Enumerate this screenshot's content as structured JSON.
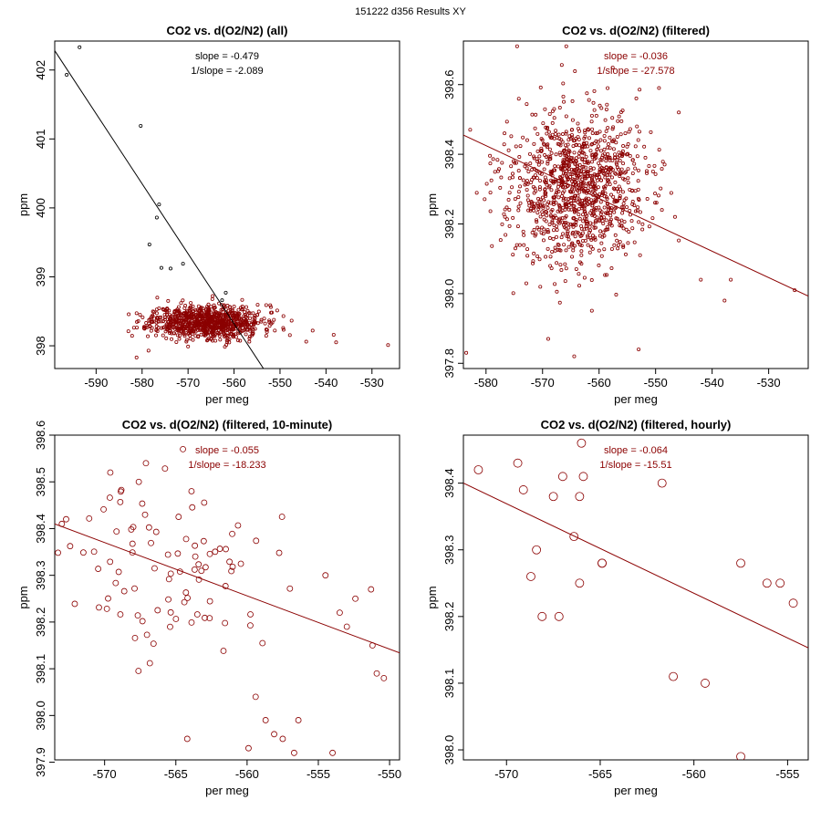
{
  "figure": {
    "suptitle": "151222   d356   Results XY",
    "colors": {
      "axes": "#000000",
      "data": "#8b0000",
      "black_series": "#000000"
    }
  },
  "chart_data": [
    {
      "id": "all",
      "type": "scatter",
      "title": "CO2 vs. d(O2/N2) (all)",
      "xlabel": "per meg",
      "ylabel": "ppm",
      "xlim": [
        -599,
        -524
      ],
      "ylim": [
        397.67,
        402.42
      ],
      "xticks": [
        -590,
        -580,
        -570,
        -560,
        -550,
        -540,
        -530
      ],
      "yticks": [
        398,
        399,
        400,
        401,
        402
      ],
      "color": "#8b0000",
      "fit_color": "#000000",
      "slope_text": "slope = -0.479",
      "inv_slope_text": "1/slope = -2.089",
      "fit_line": {
        "x": [
          -599,
          -553.6
        ],
        "y": [
          402.28,
          397.67
        ]
      },
      "cloud": {
        "n": 900,
        "x_center": -566,
        "x_sd": 6,
        "y_center": 398.35,
        "y_sd": 0.12,
        "seed": 11
      },
      "outliers": [
        [
          -593.6,
          402.33
        ],
        [
          -596.4,
          401.93
        ],
        [
          -580.3,
          401.19
        ],
        [
          -576.3,
          400.05
        ],
        [
          -576.8,
          399.86
        ],
        [
          -578.4,
          399.47
        ],
        [
          -575.8,
          399.13
        ],
        [
          -573.8,
          399.12
        ],
        [
          -571.1,
          399.19
        ],
        [
          -561.8,
          398.77
        ],
        [
          -562.6,
          398.66
        ],
        [
          -526.5,
          398.01
        ],
        [
          -537.8,
          398.05
        ],
        [
          -542.9,
          398.22
        ],
        [
          -544.3,
          398.06
        ],
        [
          -581.2,
          397.83
        ],
        [
          -578.6,
          397.93
        ],
        [
          -553.0,
          398.59
        ]
      ]
    },
    {
      "id": "filtered",
      "type": "scatter",
      "title": "CO2 vs. d(O2/N2) (filtered)",
      "xlabel": "per meg",
      "ylabel": "ppm",
      "xlim": [
        -584,
        -523
      ],
      "ylim": [
        397.785,
        398.725
      ],
      "xticks": [
        -580,
        -570,
        -560,
        -550,
        -540,
        -530
      ],
      "yticks": [
        397.8,
        398.0,
        398.2,
        398.4,
        398.6
      ],
      "color": "#8b0000",
      "fit_color": "#8b0000",
      "slope_text": "slope = -0.036",
      "inv_slope_text": "1/slope = -27.578",
      "fit_line": {
        "x": [
          -584,
          -523
        ],
        "y": [
          398.455,
          397.993
        ]
      },
      "cloud": {
        "n": 1100,
        "x_center": -564,
        "x_sd": 6,
        "y_center": 398.3,
        "y_sd": 0.11,
        "seed": 23
      },
      "outliers": [
        [
          -525.4,
          398.01
        ],
        [
          -536.7,
          398.04
        ],
        [
          -537.8,
          397.98
        ],
        [
          -542.0,
          398.04
        ],
        [
          -583.5,
          397.83
        ],
        [
          -569.0,
          397.87
        ],
        [
          -564.4,
          397.82
        ],
        [
          -553.0,
          397.84
        ],
        [
          -574.5,
          398.71
        ],
        [
          -565.8,
          398.71
        ],
        [
          -545.9,
          398.52
        ],
        [
          -549.4,
          398.59
        ],
        [
          -553.3,
          398.48
        ]
      ]
    },
    {
      "id": "ten_minute",
      "type": "scatter",
      "title": "CO2 vs. d(O2/N2) (filtered, 10-minute)",
      "xlabel": "per meg",
      "ylabel": "ppm",
      "xlim": [
        -573.5,
        -549.3
      ],
      "ylim": [
        397.905,
        398.6
      ],
      "xticks": [
        -570,
        -565,
        -560,
        -555,
        -550
      ],
      "yticks": [
        397.9,
        398.0,
        398.1,
        398.2,
        398.3,
        398.4,
        398.5,
        398.6
      ],
      "color": "#8b0000",
      "fit_color": "#8b0000",
      "slope_text": "slope = -0.055",
      "inv_slope_text": "1/slope = -18.233",
      "fit_line": {
        "x": [
          -573.5,
          -549.3
        ],
        "y": [
          398.41,
          398.134
        ]
      },
      "cloud": {
        "n": 90,
        "x_center": -565,
        "x_sd": 3.5,
        "y_center": 398.31,
        "y_sd": 0.09,
        "seed": 37
      },
      "outliers": [
        [
          -564.5,
          398.57
        ],
        [
          -567.1,
          398.54
        ],
        [
          -567.6,
          398.5
        ],
        [
          -569.6,
          398.52
        ],
        [
          -563.9,
          398.48
        ],
        [
          -572.7,
          398.42
        ],
        [
          -573.0,
          398.41
        ],
        [
          -564.2,
          397.95
        ],
        [
          -559.9,
          397.93
        ],
        [
          -556.7,
          397.92
        ],
        [
          -554.0,
          397.92
        ],
        [
          -557.5,
          397.95
        ],
        [
          -558.1,
          397.96
        ],
        [
          -558.7,
          397.99
        ],
        [
          -559.4,
          398.04
        ],
        [
          -556.4,
          397.99
        ],
        [
          -550.4,
          398.08
        ],
        [
          -550.9,
          398.09
        ],
        [
          -551.2,
          398.15
        ],
        [
          -551.3,
          398.27
        ],
        [
          -552.4,
          398.25
        ],
        [
          -553.0,
          398.19
        ],
        [
          -554.5,
          398.3
        ],
        [
          -553.5,
          398.22
        ]
      ]
    },
    {
      "id": "hourly",
      "type": "scatter",
      "title": "CO2 vs. d(O2/N2) (filtered, hourly)",
      "xlabel": "per meg",
      "ylabel": "ppm",
      "xlim": [
        -572.3,
        -553.9
      ],
      "ylim": [
        397.985,
        398.472
      ],
      "xticks": [
        -570,
        -565,
        -560,
        -555
      ],
      "yticks": [
        398.0,
        398.1,
        398.2,
        398.3,
        398.4
      ],
      "color": "#8b0000",
      "fit_color": "#8b0000",
      "slope_text": "slope = -0.064",
      "inv_slope_text": "1/slope = -15.51",
      "fit_line": {
        "x": [
          -572.3,
          -553.9
        ],
        "y": [
          398.4,
          398.153
        ]
      },
      "points": [
        [
          -571.5,
          398.42
        ],
        [
          -569.4,
          398.43
        ],
        [
          -569.1,
          398.39
        ],
        [
          -567.5,
          398.38
        ],
        [
          -567.0,
          398.41
        ],
        [
          -566.1,
          398.38
        ],
        [
          -565.9,
          398.41
        ],
        [
          -566.0,
          398.46
        ],
        [
          -566.4,
          398.32
        ],
        [
          -564.9,
          398.28
        ],
        [
          -564.9,
          398.28
        ],
        [
          -566.1,
          398.25
        ],
        [
          -568.4,
          398.3
        ],
        [
          -568.7,
          398.26
        ],
        [
          -568.1,
          398.2
        ],
        [
          -567.2,
          398.2
        ],
        [
          -561.7,
          398.4
        ],
        [
          -561.1,
          398.11
        ],
        [
          -559.4,
          398.1
        ],
        [
          -557.5,
          398.28
        ],
        [
          -557.5,
          397.99
        ],
        [
          -556.1,
          398.25
        ],
        [
          -555.4,
          398.25
        ],
        [
          -554.7,
          398.22
        ]
      ]
    }
  ]
}
